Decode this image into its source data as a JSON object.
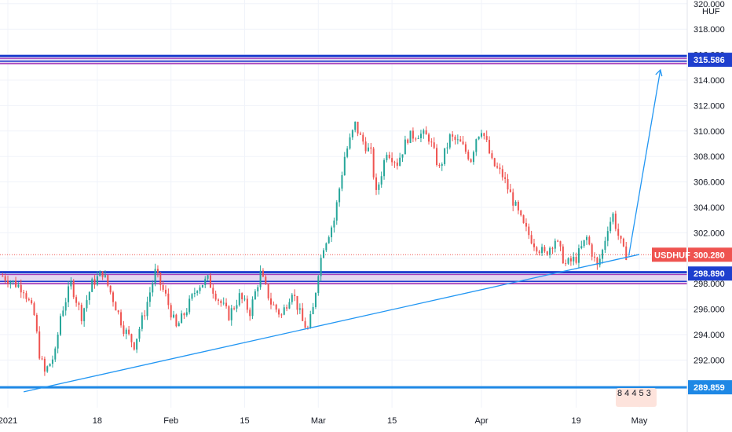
{
  "chart_data": {
    "type": "candlestick",
    "symbol": "USDHUF",
    "currency": "HUF",
    "y_axis": {
      "min": 289.0,
      "max": 320.0,
      "ticks": [
        "292.000",
        "294.000",
        "296.000",
        "298.000",
        "300.000",
        "302.000",
        "304.000",
        "306.000",
        "308.000",
        "310.000",
        "312.000",
        "314.000",
        "316.000",
        "318.000",
        "320.000"
      ]
    },
    "x_axis": {
      "ticks": [
        {
          "label": "2021",
          "day": 0
        },
        {
          "label": "18",
          "day": 17
        },
        {
          "label": "Feb",
          "day": 31
        },
        {
          "label": "15",
          "day": 45
        },
        {
          "label": "Mar",
          "day": 59
        },
        {
          "label": "15",
          "day": 73
        },
        {
          "label": "Apr",
          "day": 90
        },
        {
          "label": "19",
          "day": 108
        },
        {
          "label": "May",
          "day": 120
        }
      ]
    },
    "price_path": [
      [
        -1,
        298.6
      ],
      [
        3,
        297.6
      ],
      [
        5,
        295.5
      ],
      [
        6,
        292.5
      ],
      [
        7,
        291.0
      ],
      [
        9,
        292.5
      ],
      [
        10,
        295.5
      ],
      [
        12,
        298.0
      ],
      [
        14,
        295.5
      ],
      [
        16,
        298.0
      ],
      [
        18,
        298.9
      ],
      [
        20,
        296.8
      ],
      [
        22,
        294.5
      ],
      [
        24,
        293.2
      ],
      [
        26,
        295.8
      ],
      [
        28,
        298.9
      ],
      [
        30,
        297.0
      ],
      [
        32,
        294.5
      ],
      [
        34,
        296.0
      ],
      [
        36,
        297.8
      ],
      [
        38,
        298.3
      ],
      [
        40,
        296.8
      ],
      [
        42,
        295.5
      ],
      [
        44,
        297.0
      ],
      [
        46,
        295.8
      ],
      [
        48,
        298.8
      ],
      [
        50,
        296.5
      ],
      [
        52,
        295.5
      ],
      [
        54,
        297.5
      ],
      [
        56,
        295.0
      ],
      [
        57,
        294.4
      ],
      [
        58,
        296.0
      ],
      [
        59,
        299.0
      ],
      [
        60,
        301.0
      ],
      [
        62,
        303.0
      ],
      [
        63,
        305.5
      ],
      [
        64,
        308.0
      ],
      [
        66,
        310.5
      ],
      [
        67,
        309.5
      ],
      [
        69,
        308.2
      ],
      [
        70,
        305.0
      ],
      [
        72,
        308.5
      ],
      [
        74,
        307.5
      ],
      [
        76,
        309.5
      ],
      [
        78,
        309.8
      ],
      [
        80,
        309.5
      ],
      [
        82,
        307.0
      ],
      [
        84,
        309.5
      ],
      [
        86,
        309.0
      ],
      [
        88,
        307.8
      ],
      [
        89,
        309.5
      ],
      [
        90,
        310.2
      ],
      [
        91,
        309.0
      ],
      [
        92,
        307.5
      ],
      [
        94,
        306.5
      ],
      [
        96,
        304.5
      ],
      [
        98,
        302.5
      ],
      [
        100,
        301.2
      ],
      [
        102,
        300.3
      ],
      [
        104,
        301.5
      ],
      [
        106,
        299.5
      ],
      [
        108,
        300.0
      ],
      [
        110,
        301.6
      ],
      [
        112,
        299.3
      ],
      [
        113,
        300.6
      ],
      [
        114,
        302.5
      ],
      [
        115,
        303.4
      ],
      [
        116,
        301.8
      ],
      [
        117,
        300.5
      ],
      [
        117.5,
        300.3
      ]
    ],
    "support_band": {
      "from": 298.0,
      "to": 298.9,
      "label": "298.890"
    },
    "resistance_band": {
      "from": 315.3,
      "to": 315.9,
      "label": "315.586"
    },
    "bottom_line": {
      "value": 289.859,
      "label": "289.859"
    },
    "last_price": {
      "value": 300.28,
      "label": "300.280",
      "name": "USDHUF"
    },
    "trendline": [
      [
        3,
        289.5
      ],
      [
        120,
        300.3
      ]
    ],
    "projection": [
      [
        118,
        300.2
      ],
      [
        124,
        314.8
      ]
    ],
    "colors": {
      "up": "#26a69a",
      "down": "#ef5350",
      "band_blue": "#1e3fce",
      "band_purple": "#9c27b0",
      "band_fill": "#e4d7f0",
      "trend": "#2196f3",
      "last_price": "#ef5350",
      "bottom_line": "#1e88e5"
    },
    "grid": true
  },
  "corner": {
    "digits": "8 4 4 5 3"
  }
}
